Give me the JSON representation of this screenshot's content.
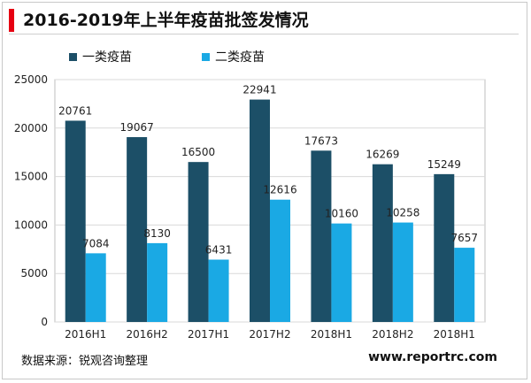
{
  "header": {
    "title": "2016-2019年上半年疫苗批签发情况"
  },
  "legend": {
    "items": [
      {
        "label": "一类疫苗",
        "color": "#1c4f67"
      },
      {
        "label": "二类疫苗",
        "color": "#1aa9e4"
      }
    ]
  },
  "chart_data": {
    "type": "bar",
    "title": "2016-2019年上半年疫苗批签发情况",
    "xlabel": "",
    "ylabel": "",
    "categories": [
      "2016H1",
      "2016H2",
      "2017H1",
      "2017H2",
      "2018H1",
      "2018H2",
      "2018H1"
    ],
    "series": [
      {
        "name": "一类疫苗",
        "color": "#1c4f67",
        "values": [
          20761,
          19067,
          16500,
          22941,
          17673,
          16269,
          15249
        ]
      },
      {
        "name": "二类疫苗",
        "color": "#1aa9e4",
        "values": [
          7084,
          8130,
          6431,
          12616,
          10160,
          10258,
          7657
        ]
      }
    ],
    "ylim": [
      0,
      25000
    ],
    "yticks": [
      0,
      5000,
      10000,
      15000,
      20000,
      25000
    ],
    "grid": true,
    "legend_position": "top"
  },
  "footer": {
    "source": "数据来源：锐观咨询整理",
    "website": "www.reportrc.com"
  }
}
